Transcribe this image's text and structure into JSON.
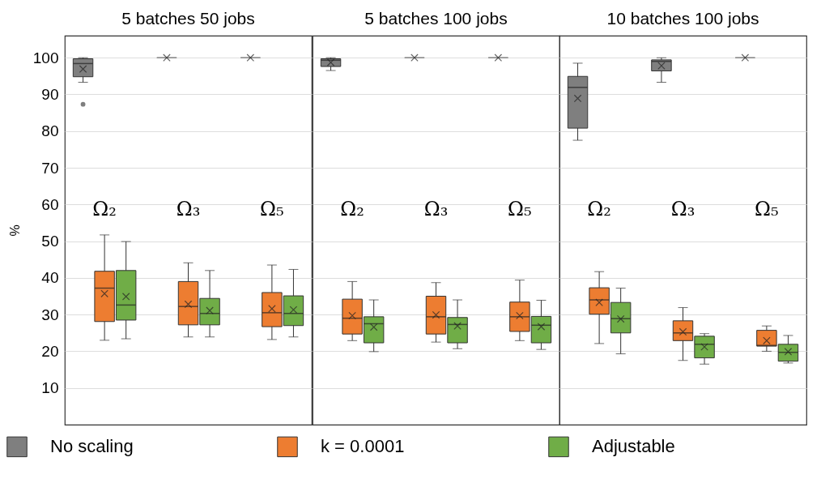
{
  "chart_data": [
    {
      "type": "box",
      "title": "5 batches 50 jobs",
      "ylabel": "%",
      "categories": [
        "Ω₂",
        "Ω₃",
        "Ω₅"
      ],
      "ylim": [
        0,
        106
      ],
      "yticks": [
        10,
        20,
        30,
        40,
        50,
        60,
        70,
        80,
        90,
        100
      ],
      "grid": "y",
      "legend": "bottom",
      "series": [
        {
          "name": "No scaling",
          "color": "#7f7f7f",
          "boxes": [
            {
              "low": 93.3,
              "q1": 94.8,
              "median": 98.4,
              "q3": 99.7,
              "high": 100,
              "mean": 96.9,
              "outliers": [
                87.3
              ]
            },
            {
              "low": 100,
              "q1": 100,
              "median": 100,
              "q3": 100,
              "high": 100,
              "mean": 100
            },
            {
              "low": 100,
              "q1": 100,
              "median": 100,
              "q3": 100,
              "high": 100,
              "mean": 100
            }
          ]
        },
        {
          "name": "k = 0.0001",
          "color": "#ed7d31",
          "boxes": [
            {
              "low": 23.0,
              "q1": 28.1,
              "median": 37.2,
              "q3": 41.8,
              "high": 51.7,
              "mean": 35.7
            },
            {
              "low": 23.9,
              "q1": 27.2,
              "median": 32.2,
              "q3": 39.0,
              "high": 44.1,
              "mean": 32.8
            },
            {
              "low": 23.2,
              "q1": 26.7,
              "median": 30.5,
              "q3": 36.0,
              "high": 43.5,
              "mean": 31.6
            }
          ]
        },
        {
          "name": "Adjustable",
          "color": "#70ad47",
          "boxes": [
            {
              "low": 23.4,
              "q1": 28.5,
              "median": 32.6,
              "q3": 42.0,
              "high": 49.9,
              "mean": 34.9
            },
            {
              "low": 23.9,
              "q1": 27.2,
              "median": 30.3,
              "q3": 34.4,
              "high": 42.0,
              "mean": 31.1
            },
            {
              "low": 23.9,
              "q1": 27.0,
              "median": 30.3,
              "q3": 35.1,
              "high": 42.3,
              "mean": 31.3
            }
          ]
        }
      ]
    },
    {
      "type": "box",
      "title": "5 batches 100 jobs",
      "categories": [
        "Ω₂",
        "Ω₃",
        "Ω₅"
      ],
      "ylim": [
        0,
        106
      ],
      "yticks": [
        10,
        20,
        30,
        40,
        50,
        60,
        70,
        80,
        90,
        100
      ],
      "grid": "y",
      "tick_labels": "x",
      "series": [
        {
          "color": "#7f7f7f",
          "boxes": [
            {
              "low": 96.5,
              "q1": 97.6,
              "median": 99.3,
              "q3": 99.7,
              "high": 100,
              "mean": 98.7
            },
            {
              "low": 100,
              "q1": 100,
              "median": 100,
              "q3": 100,
              "high": 100,
              "mean": 100
            },
            {
              "low": 100,
              "q1": 100,
              "median": 100,
              "q3": 100,
              "high": 100,
              "mean": 100
            }
          ]
        },
        {
          "color": "#ed7d31",
          "boxes": [
            {
              "low": 22.9,
              "q1": 24.7,
              "median": 29.0,
              "q3": 34.2,
              "high": 39.0,
              "mean": 29.7
            },
            {
              "low": 22.5,
              "q1": 24.7,
              "median": 29.4,
              "q3": 35.0,
              "high": 38.7,
              "mean": 29.9
            },
            {
              "low": 22.9,
              "q1": 25.4,
              "median": 29.4,
              "q3": 33.4,
              "high": 39.4,
              "mean": 29.7
            }
          ]
        },
        {
          "color": "#70ad47",
          "boxes": [
            {
              "low": 19.9,
              "q1": 22.3,
              "median": 27.5,
              "q3": 29.4,
              "high": 34.0,
              "mean": 26.6
            },
            {
              "low": 20.7,
              "q1": 22.3,
              "median": 27.3,
              "q3": 29.2,
              "high": 34.0,
              "mean": 26.9
            },
            {
              "low": 20.5,
              "q1": 22.3,
              "median": 27.1,
              "q3": 29.5,
              "high": 33.9,
              "mean": 26.7
            }
          ]
        }
      ]
    },
    {
      "type": "box",
      "title": "10 batches 100 jobs",
      "categories": [
        "Ω₂",
        "Ω₃",
        "Ω₅"
      ],
      "ylim": [
        0,
        106
      ],
      "yticks": [
        10,
        20,
        30,
        40,
        50,
        60,
        70,
        80,
        90,
        100
      ],
      "grid": "y",
      "tick_labels": "x",
      "series": [
        {
          "color": "#7f7f7f",
          "boxes": [
            {
              "low": 77.5,
              "q1": 80.8,
              "median": 91.9,
              "q3": 94.9,
              "high": 98.5,
              "mean": 88.9
            },
            {
              "low": 93.3,
              "q1": 96.4,
              "median": 99.0,
              "q3": 99.4,
              "high": 100,
              "mean": 97.8
            },
            {
              "low": 100,
              "q1": 100,
              "median": 100,
              "q3": 100,
              "high": 100,
              "mean": 100
            }
          ]
        },
        {
          "color": "#ed7d31",
          "boxes": [
            {
              "low": 22.1,
              "q1": 30.1,
              "median": 34.0,
              "q3": 37.3,
              "high": 41.7,
              "mean": 33.3
            },
            {
              "low": 17.5,
              "q1": 22.9,
              "median": 25.0,
              "q3": 28.3,
              "high": 31.9,
              "mean": 25.3
            },
            {
              "low": 20.0,
              "q1": 21.4,
              "median": 21.6,
              "q3": 25.7,
              "high": 26.9,
              "mean": 22.9
            }
          ]
        },
        {
          "color": "#70ad47",
          "boxes": [
            {
              "low": 19.3,
              "q1": 25.0,
              "median": 28.9,
              "q3": 33.3,
              "high": 37.2,
              "mean": 28.8
            },
            {
              "low": 16.5,
              "q1": 18.2,
              "median": 21.9,
              "q3": 24.1,
              "high": 24.8,
              "mean": 21.2
            },
            {
              "low": 16.8,
              "q1": 17.3,
              "median": 19.7,
              "q3": 21.9,
              "high": 24.3,
              "mean": 19.9
            }
          ]
        }
      ]
    }
  ]
}
